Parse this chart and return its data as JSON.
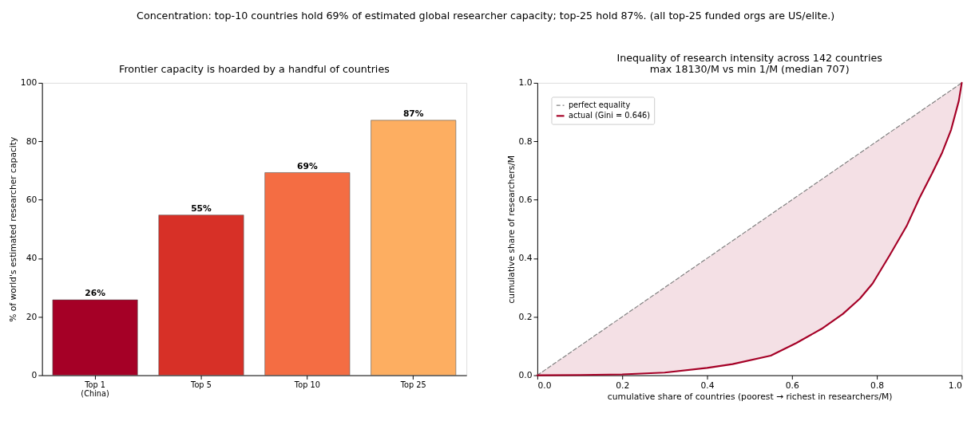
{
  "chart_data": [
    {
      "type": "bar",
      "title": "Frontier capacity is hoarded by a handful of countries",
      "ylabel": "% of world's estimated researcher capacity",
      "annotations": [
        "Concentration: top-10 countries hold 69% of estimated global researcher capacity; top-25 hold 87%. (all top-25 funded orgs are US/elite.)"
      ],
      "categories": [
        "Top 1\n(China)",
        "Top 5",
        "Top 10",
        "Top 25"
      ],
      "values": [
        25.8,
        54.8,
        69.3,
        87.2
      ],
      "value_labels": [
        "26%",
        "55%",
        "69%",
        "87%"
      ],
      "colors": [
        "#a50026",
        "#d73027",
        "#f46d43",
        "#fdae61"
      ],
      "ylim": [
        0,
        100
      ],
      "yticks": [
        0,
        20,
        40,
        60,
        80,
        100
      ],
      "grid": false,
      "legend": false
    },
    {
      "type": "line",
      "title": "Inequality of research intensity across 142 countries",
      "subtitle": "max 18130/M vs min 1/M  (median 707)",
      "xlabel": "cumulative share of countries (poorest → richest in researchers/M)",
      "ylabel": "cumulative share of researchers/M",
      "series": [
        {
          "name": "perfect equality",
          "color": "#808080",
          "line_style": "dashed",
          "x": [
            0,
            1
          ],
          "values": [
            0,
            1
          ]
        },
        {
          "name": "actual (Gini = 0.646)",
          "color": "#a50026",
          "line_style": "solid",
          "x": [
            0,
            0.1,
            0.2,
            0.3,
            0.4,
            0.46,
            0.55,
            0.61,
            0.67,
            0.72,
            0.76,
            0.79,
            0.83,
            0.87,
            0.9,
            0.93,
            0.954,
            0.975,
            0.993,
            1.0
          ],
          "values": [
            0,
            0.001,
            0.003,
            0.009,
            0.025,
            0.038,
            0.067,
            0.11,
            0.159,
            0.21,
            0.262,
            0.314,
            0.41,
            0.51,
            0.605,
            0.69,
            0.762,
            0.84,
            0.938,
            1.0
          ],
          "lower": [
            0,
            0.001,
            0.003,
            0.009,
            0.025,
            0.038,
            0.067,
            0.11,
            0.159,
            0.21,
            0.262,
            0.314,
            0.41,
            0.51,
            0.605,
            0.69,
            0.762,
            0.84,
            0.938,
            1.0
          ],
          "upper": [
            0,
            0.1,
            0.2,
            0.3,
            0.4,
            0.46,
            0.55,
            0.61,
            0.67,
            0.72,
            0.76,
            0.79,
            0.83,
            0.87,
            0.9,
            0.93,
            0.954,
            0.975,
            0.993,
            1.0
          ]
        }
      ],
      "xlim": [
        0,
        1
      ],
      "ylim": [
        0,
        1
      ],
      "xticks": [
        {
          "value": 0,
          "label": "0.0"
        },
        0.2,
        0.4,
        0.6,
        0.8,
        {
          "value": 1,
          "label": "1.0"
        }
      ],
      "yticks": [
        {
          "value": 0,
          "label": "0.0"
        },
        0.2,
        0.4,
        0.6,
        0.8,
        {
          "value": 1,
          "label": "1.0"
        }
      ],
      "grid": false,
      "legend": "top left"
    }
  ]
}
